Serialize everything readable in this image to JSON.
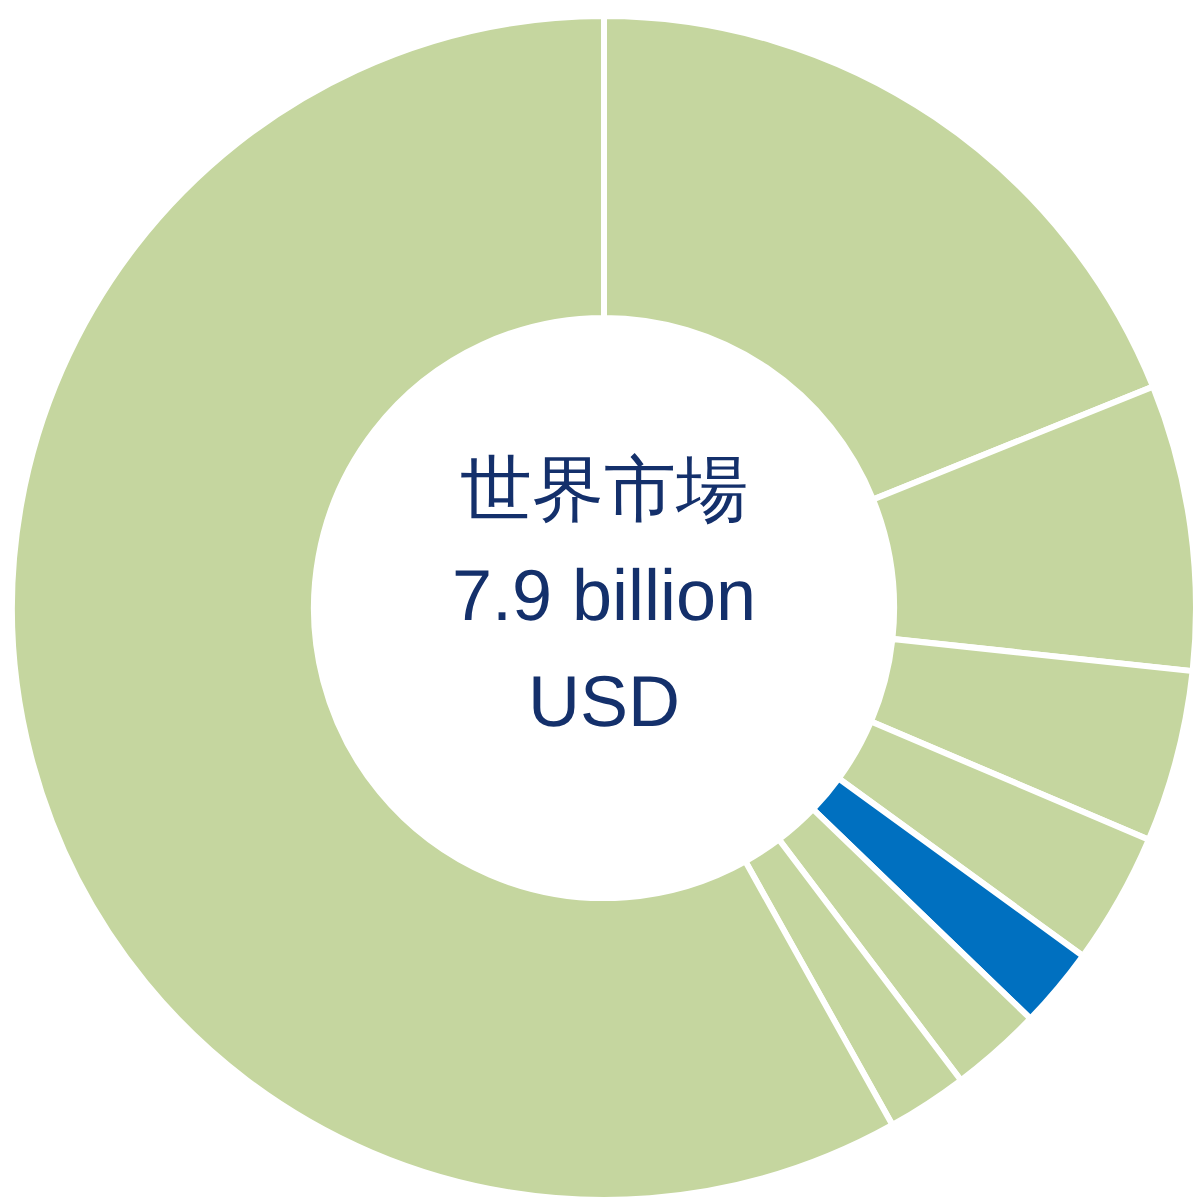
{
  "chart_data": {
    "type": "donut",
    "categories": [
      null,
      null,
      null,
      null,
      null,
      null,
      null,
      null
    ],
    "values": [
      18.9,
      7.8,
      4.7,
      3.6,
      2.2,
      2.5,
      2.2,
      58.1
    ],
    "colors": [
      "#c5d69f",
      "#c5d69f",
      "#c5d69f",
      "#c5d69f",
      "#0070c0",
      "#c5d69f",
      "#c5d69f",
      "#c5d69f"
    ],
    "annotations": [
      "世界市場",
      "7.9 billion",
      "USD"
    ]
  }
}
